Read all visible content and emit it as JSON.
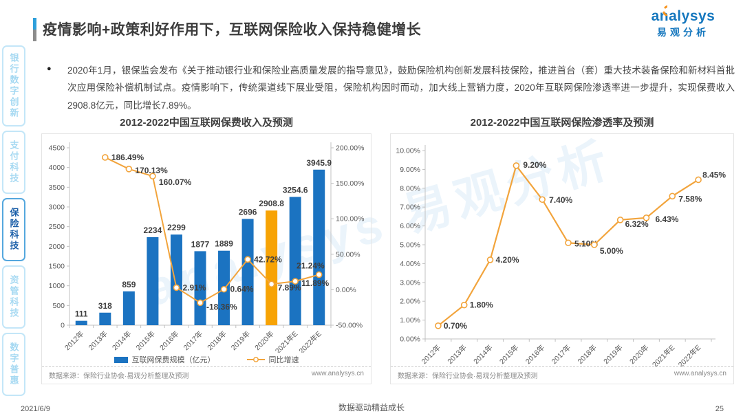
{
  "page": {
    "title": "疫情影响+政策利好作用下，互联网保险收入保持稳健增长",
    "logo_brand": "analysys",
    "logo_cn": "易观分析",
    "watermark": "analysys 易观分析"
  },
  "bullet": {
    "marker": "●",
    "text": "2020年1月，银保监会发布《关于推动银行业和保险业高质量发展的指导意见》，鼓励保险机构创新发展科技保险，推进首台（套）重大技术装备保险和新材料首批次应用保险补偿机制试点。疫情影响下，传统渠道线下展业受阻，保险机构因时而动，加大线上营销力度，2020年互联网保险渗透率进一步提升，实现保费收入2908.8亿元，同比增长7.89%。"
  },
  "sidebar": {
    "items": [
      {
        "label": "银行数字创新",
        "active": false
      },
      {
        "label": "支付科技",
        "active": false
      },
      {
        "label": "保险科技",
        "active": true
      },
      {
        "label": "资管科技",
        "active": false
      },
      {
        "label": "数字普惠",
        "active": false
      }
    ]
  },
  "colors": {
    "bar_blue": "#1B73C1",
    "bar_highlight": "#F7A305",
    "line_orange": "#F2A43C",
    "accent_blue": "#2D9FDB",
    "brand_blue": "#1577BE"
  },
  "chart_data": [
    {
      "type": "bar",
      "title": "2012-2022中国互联网保费收入及预测",
      "categories": [
        "2012年",
        "2013年",
        "2014年",
        "2015年",
        "2016年",
        "2017年",
        "2018年",
        "2019年",
        "2020年",
        "2021年E",
        "2022年E"
      ],
      "series": [
        {
          "name": "互联网保费规模（亿元）",
          "type": "bar",
          "highlight_index": 8,
          "values": [
            111,
            318,
            859,
            2234,
            2299,
            1877,
            1889,
            2696,
            2908.8,
            3254.6,
            3945.9
          ]
        },
        {
          "name": "同比增速",
          "type": "line",
          "axis": "right",
          "values": [
            null,
            186.49,
            170.13,
            160.07,
            2.91,
            -18.36,
            0.64,
            42.72,
            7.89,
            11.89,
            21.24
          ],
          "labels": [
            null,
            "186.49%",
            "170.13%",
            "160.07%",
            "2.91%",
            "-18.36%",
            "0.64%",
            "42.72%",
            "7.89%",
            "11.89%",
            "21.24%"
          ]
        }
      ],
      "y_left": {
        "min": 0,
        "max": 4500,
        "step": 500
      },
      "y_right": {
        "min": -50,
        "max": 200,
        "step": 50
      },
      "legend": [
        "互联网保费规模（亿元）",
        "同比增速"
      ],
      "source": "数据来源：保险行业协会·易观分析整理及预测",
      "website": "www.analysys.cn"
    },
    {
      "type": "line",
      "title": "2012-2022中国互联网保险渗透率及预测",
      "categories": [
        "2012年",
        "2013年",
        "2014年",
        "2015年",
        "2016年",
        "2017年",
        "2018年",
        "2019年",
        "2020年",
        "2021年E",
        "2022年E"
      ],
      "series": [
        {
          "name": "互联网保险渗透率",
          "type": "line",
          "values": [
            0.7,
            1.8,
            4.2,
            9.2,
            7.4,
            5.1,
            5.0,
            6.32,
            6.43,
            7.58,
            8.45
          ],
          "labels": [
            "0.70%",
            "1.80%",
            "4.20%",
            "9.20%",
            "7.40%",
            "5.10%",
            "5.00%",
            "6.32%",
            "6.43%",
            "7.58%",
            "8.45%"
          ]
        }
      ],
      "y_left": {
        "min": 0,
        "max": 10,
        "step": 1
      },
      "source": "数据来源：保险行业协会·易观分析整理及预测",
      "website": "www.analysys.cn"
    }
  ],
  "footer": {
    "date": "2021/6/9",
    "slogan": "数据驱动精益成长",
    "page_number": "25"
  }
}
